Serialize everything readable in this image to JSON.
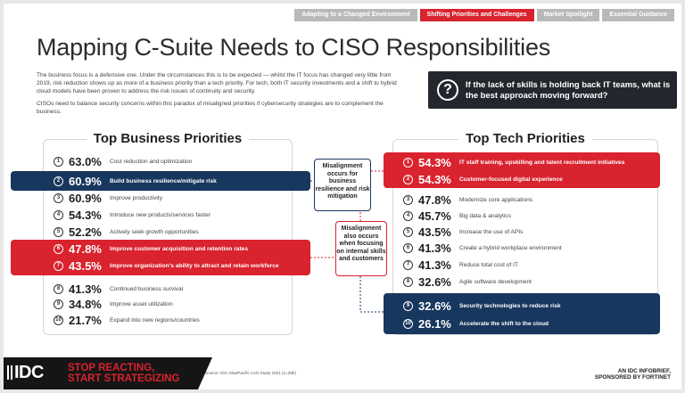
{
  "tabs": [
    "Adapting to a Changed Environment",
    "Shifting Priorities and Challenges",
    "Market Spotlight",
    "Essential Guidance"
  ],
  "title": "Mapping C-Suite Needs to CISO Responsibilities",
  "intro": {
    "p1": "The business focus is a defensive one. Under the circumstances this is to be expected — whilst the IT focus has changed very little from 2019, risk reduction shows up as more of a business priority than a tech priority. For tech, both IT security investments and a shift to hybrid cloud models have been proven to address the risk issues of continuity and security.",
    "p2": "CISOs need to balance security concerns within this paradox of misaligned priorities if cybersecurity strategies are to complement the business."
  },
  "callout": {
    "icon": "question-mark-icon",
    "q_glyph": "?",
    "text": "If the lack of skills is holding back IT teams, what is the best approach moving forward?"
  },
  "business": {
    "title": "Top Business Priorities",
    "rows": [
      {
        "n": "1",
        "pct": "63.0%",
        "label": "Cost reduction and optimization"
      },
      {
        "n": "2",
        "pct": "60.9%",
        "label": "Build business resilience/mitigate risk"
      },
      {
        "n": "3",
        "pct": "60.9%",
        "label": "Improve productivity"
      },
      {
        "n": "4",
        "pct": "54.3%",
        "label": "Introduce new products/services faster"
      },
      {
        "n": "5",
        "pct": "52.2%",
        "label": "Actively seek growth opportunities"
      },
      {
        "n": "6",
        "pct": "47.8%",
        "label": "Improve customer acquisition and retention rates"
      },
      {
        "n": "7",
        "pct": "43.5%",
        "label": "Improve organization's ability to attract and retain workforce"
      },
      {
        "n": "8",
        "pct": "41.3%",
        "label": "Continued business survival"
      },
      {
        "n": "9",
        "pct": "34.8%",
        "label": "Improve asset utilization"
      },
      {
        "n": "10",
        "pct": "21.7%",
        "label": "Expand into new regions/countries"
      }
    ]
  },
  "tech": {
    "title": "Top Tech Priorities",
    "rows": [
      {
        "n": "1",
        "pct": "54.3%",
        "label": "IT staff training, upskilling and talent recruitment initiatives"
      },
      {
        "n": "2",
        "pct": "54.3%",
        "label": "Customer-focused digital experience"
      },
      {
        "n": "3",
        "pct": "47.8%",
        "label": "Modernize core applications"
      },
      {
        "n": "4",
        "pct": "45.7%",
        "label": "Big data & analytics"
      },
      {
        "n": "5",
        "pct": "43.5%",
        "label": "Increase the use of APIs"
      },
      {
        "n": "6",
        "pct": "41.3%",
        "label": "Create a hybrid workplace environment"
      },
      {
        "n": "7",
        "pct": "41.3%",
        "label": "Reduce total cost of IT"
      },
      {
        "n": "8",
        "pct": "32.6%",
        "label": "Agile software development"
      },
      {
        "n": "9",
        "pct": "32.6%",
        "label": "Security technologies to reduce risk"
      },
      {
        "n": "10",
        "pct": "26.1%",
        "label": "Accelerate the shift to the cloud"
      }
    ]
  },
  "misalign1": "Misalignment occurs for business resilience and risk mitigation",
  "misalign2": "Misalignment also occurs when focusing on internal skills and customers",
  "footer": {
    "logo": "IDC",
    "slogan1": "STOP REACTING,",
    "slogan2": "START STRATEGIZING",
    "source": "Source: IDC Asia/Pacific CxO Study 2021 (n=29b)",
    "sponsor1": "AN IDC INFOBRIEF,",
    "sponsor2": "SPONSORED BY FORTINET"
  },
  "colors": {
    "red": "#d9232e",
    "navy": "#17375e",
    "dark": "#23272d"
  }
}
